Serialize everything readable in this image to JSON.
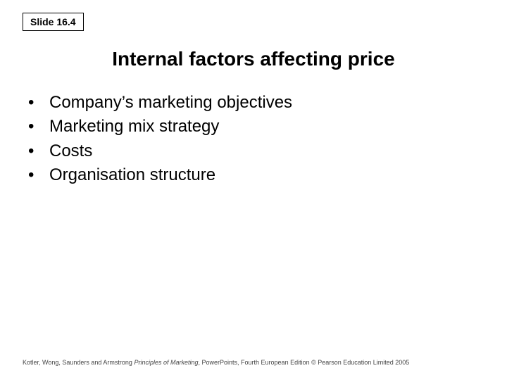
{
  "slide_number_label": "Slide 16.4",
  "title": "Internal factors affecting price",
  "bullets": [
    "Company’s marketing objectives",
    "Marketing mix strategy",
    "Costs",
    "Organisation structure"
  ],
  "footer": {
    "authors": "Kotler, Wong, Saunders and Armstrong",
    "book_title": "Principles of Marketing",
    "rest": ", PowerPoints, Fourth European Edition © Pearson Education Limited 2005"
  },
  "colors": {
    "background": "#ffffff",
    "text": "#000000",
    "footer_text": "#444444",
    "border": "#000000"
  },
  "typography": {
    "slide_number_fontsize": 14,
    "title_fontsize": 28,
    "bullet_fontsize": 24,
    "footer_fontsize": 9,
    "title_weight": "bold",
    "slide_number_weight": "bold"
  }
}
